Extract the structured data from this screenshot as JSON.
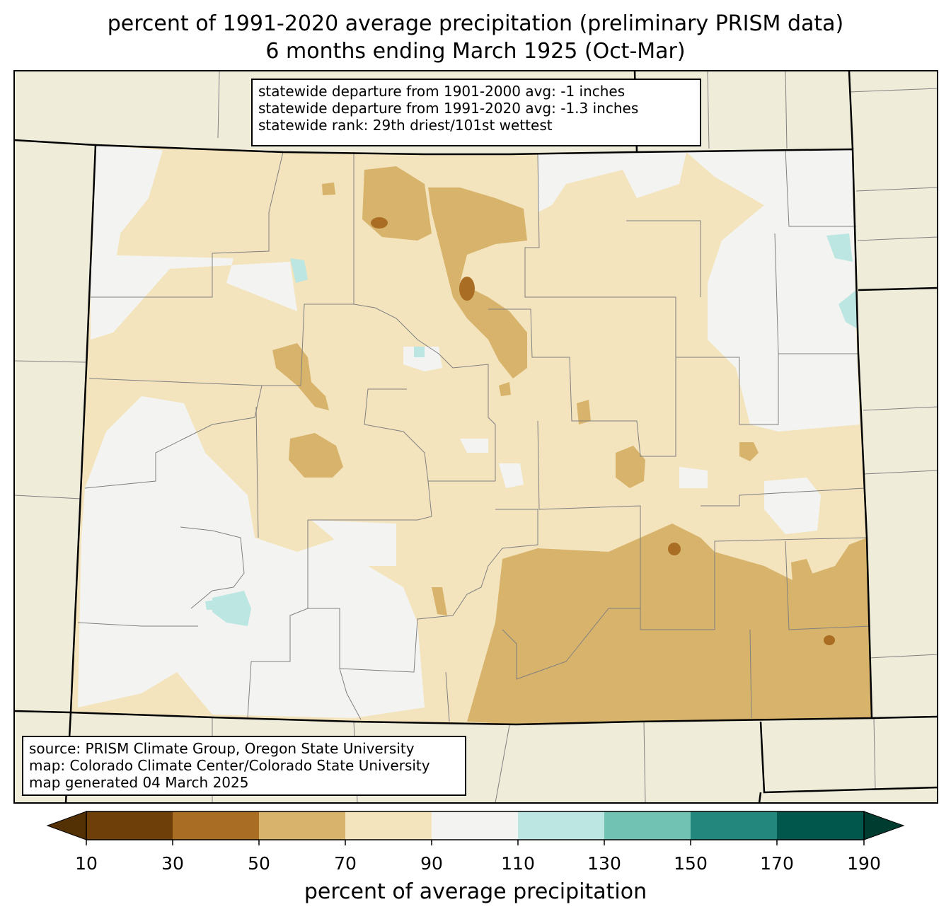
{
  "title": {
    "line1": "percent of 1991-2020 average precipitation (preliminary PRISM data)",
    "line2": "6 months ending March 1925 (Oct-Mar)"
  },
  "stats": {
    "line1": "statewide departure from 1901-2000 avg: -1 inches",
    "line2": "statewide departure from 1991-2020 avg: -1.3 inches",
    "line3": "statewide rank: 29th driest/101st wettest"
  },
  "source": {
    "line1": "source: PRISM Climate Group, Oregon State University",
    "line2": "map: Colorado Climate Center/Colorado State University",
    "line3": "map generated 04 March 2025"
  },
  "colorbar": {
    "title": "percent of average precipitation",
    "ticks": [
      "10",
      "30",
      "50",
      "70",
      "90",
      "110",
      "130",
      "150",
      "170",
      "190"
    ],
    "colors": [
      "#6f3f0a",
      "#a96e23",
      "#d8b36b",
      "#f3e4bd",
      "#f3f4f2",
      "#bce6e1",
      "#72c2b4",
      "#24877e",
      "#01574b"
    ],
    "under_color": "#543005",
    "over_color": "#003c30"
  },
  "map_colors": {
    "land_outside": "#efecda",
    "state_border": "#000000",
    "county_lines": "#808080"
  }
}
